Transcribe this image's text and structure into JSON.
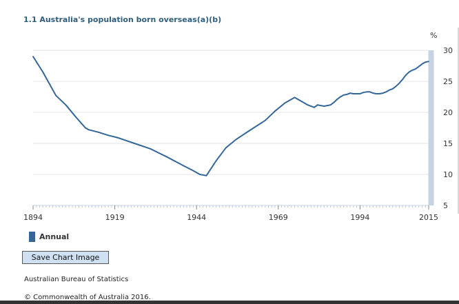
{
  "chart_data": {
    "type": "line",
    "title": "1.1 Australia's population born overseas(a)(b)",
    "ylabel": "%",
    "y_axis_side": "right",
    "ylim": [
      5,
      30
    ],
    "yticks": [
      5,
      10,
      15,
      20,
      25,
      30
    ],
    "xlim": [
      1894,
      2015
    ],
    "xticks": [
      1894,
      1919,
      1944,
      1969,
      1994,
      2015
    ],
    "grid": true,
    "legend_position": "bottom-left",
    "colors": {
      "line": "#336699",
      "highlight": "#c5d3e3",
      "grid": "#e6e6e6"
    },
    "series": [
      {
        "name": "Annual",
        "x": [
          1894,
          1897,
          1901,
          1904,
          1907,
          1910,
          1911,
          1914,
          1917,
          1920,
          1925,
          1930,
          1935,
          1940,
          1943,
          1945,
          1947,
          1950,
          1953,
          1956,
          1960,
          1965,
          1968,
          1971,
          1974,
          1976,
          1978,
          1980,
          1981,
          1982,
          1983,
          1984,
          1985,
          1986,
          1987,
          1988,
          1989,
          1990,
          1991,
          1992,
          1993,
          1994,
          1995,
          1996,
          1997,
          1998,
          1999,
          2000,
          2001,
          2002,
          2003,
          2004,
          2005,
          2006,
          2007,
          2008,
          2009,
          2010,
          2011,
          2012,
          2013,
          2014,
          2015
        ],
        "values": [
          29.0,
          26.5,
          22.7,
          21.2,
          19.3,
          17.5,
          17.2,
          16.8,
          16.3,
          15.9,
          15.0,
          14.1,
          12.8,
          11.4,
          10.6,
          10.0,
          9.8,
          12.2,
          14.3,
          15.6,
          17.0,
          18.7,
          20.2,
          21.5,
          22.4,
          21.8,
          21.2,
          20.8,
          21.2,
          21.1,
          21.0,
          21.1,
          21.2,
          21.6,
          22.1,
          22.5,
          22.8,
          22.9,
          23.1,
          23.0,
          23.0,
          23.0,
          23.2,
          23.3,
          23.3,
          23.1,
          23.0,
          23.0,
          23.1,
          23.3,
          23.6,
          23.8,
          24.2,
          24.7,
          25.3,
          26.0,
          26.5,
          26.8,
          27.0,
          27.4,
          27.8,
          28.1,
          28.2
        ]
      }
    ]
  },
  "legend": {
    "label": "Annual"
  },
  "save_button": {
    "label": "Save Chart Image"
  },
  "footer": {
    "source": "Australian Bureau of Statistics",
    "copyright": "© Commonwealth of Australia 2016."
  }
}
